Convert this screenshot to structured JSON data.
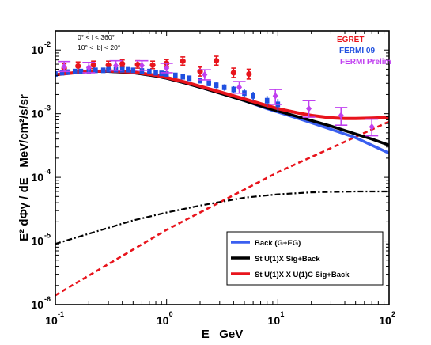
{
  "chart_data": {
    "type": "line",
    "xscale": "log",
    "yscale": "log",
    "xlim": [
      0.1,
      100
    ],
    "ylim": [
      1e-06,
      0.02
    ],
    "xlabel": "E   GeV",
    "ylabel": "E² dΦγ / dE   MeV/cm²/s/sr",
    "grid": false,
    "x_ticks": [
      {
        "value": 0.1,
        "base": "10",
        "exp": "-1"
      },
      {
        "value": 1,
        "base": "10",
        "exp": "0"
      },
      {
        "value": 10,
        "base": "10",
        "exp": "1"
      },
      {
        "value": 100,
        "base": "10",
        "exp": "2"
      }
    ],
    "y_ticks": [
      {
        "value": 1e-06,
        "base": "10",
        "exp": "-6"
      },
      {
        "value": 1e-05,
        "base": "10",
        "exp": "-5"
      },
      {
        "value": 0.0001,
        "base": "10",
        "exp": "-4"
      },
      {
        "value": 0.001,
        "base": "10",
        "exp": "-3"
      },
      {
        "value": 0.01,
        "base": "10",
        "exp": "-2"
      }
    ],
    "region_annotation": {
      "line1": "0° < l < 360°",
      "line2": "10° < |b| < 20°"
    },
    "data_legend": {
      "placement": "top-right",
      "entries": [
        {
          "label": "EGRET",
          "color": "#e8141c"
        },
        {
          "label": "FERMI 09",
          "color": "#2050e0"
        },
        {
          "label": "FERMI Prelim",
          "color": "#c040f0"
        }
      ]
    },
    "model_legend": {
      "placement": "bottom-right",
      "entries": [
        {
          "label": "Back (G+EG)",
          "color": "#3a5ff0"
        },
        {
          "label": "St U(1)X Sig+Back",
          "color": "#000000"
        },
        {
          "label": "St U(1)X X U(1)C Sig+Back",
          "color": "#e8141c"
        }
      ]
    },
    "series": [
      {
        "name": "Back (G+EG)",
        "kind": "line",
        "style": "solid",
        "color": "#3a5ff0",
        "x": [
          0.1,
          0.15,
          0.2,
          0.3,
          0.5,
          0.8,
          1,
          1.5,
          2,
          3,
          5,
          8,
          10,
          15,
          20,
          30,
          50,
          70,
          100
        ],
        "y": [
          0.0041,
          0.0044,
          0.0046,
          0.0046,
          0.0044,
          0.0039,
          0.0036,
          0.003,
          0.0026,
          0.0021,
          0.0016,
          0.0012,
          0.00106,
          0.00085,
          0.00072,
          0.00057,
          0.00042,
          0.00032,
          0.00024
        ]
      },
      {
        "name": "St U(1)X Sig+Back",
        "kind": "line",
        "style": "solid",
        "color": "#000000",
        "x": [
          0.1,
          0.15,
          0.2,
          0.3,
          0.5,
          0.8,
          1,
          1.5,
          2,
          3,
          5,
          8,
          10,
          15,
          20,
          30,
          50,
          70,
          100
        ],
        "y": [
          0.0041,
          0.0044,
          0.0046,
          0.0046,
          0.0044,
          0.0039,
          0.0036,
          0.003,
          0.0026,
          0.0021,
          0.0016,
          0.00123,
          0.0011,
          0.0009,
          0.00078,
          0.00064,
          0.00048,
          0.0004,
          0.00032
        ]
      },
      {
        "name": "St U(1)X X U(1)C Sig+Back",
        "kind": "line",
        "style": "solid",
        "color": "#e8141c",
        "x": [
          0.1,
          0.15,
          0.2,
          0.3,
          0.5,
          0.8,
          1,
          1.5,
          2,
          3,
          5,
          8,
          10,
          15,
          20,
          30,
          40,
          50,
          70,
          100
        ],
        "y": [
          0.0041,
          0.0044,
          0.0046,
          0.0047,
          0.0045,
          0.004,
          0.0037,
          0.0031,
          0.0027,
          0.0022,
          0.0017,
          0.00134,
          0.0012,
          0.00103,
          0.00094,
          0.00086,
          0.00084,
          0.00084,
          0.00085,
          0.00087
        ]
      },
      {
        "kind": "line",
        "style": "dashed",
        "color": "#e8141c",
        "x": [
          0.1,
          1,
          10,
          100
        ],
        "y": [
          1.4e-06,
          1.5e-05,
          0.00012,
          0.00075
        ]
      },
      {
        "kind": "line",
        "style": "dashdot",
        "color": "#000000",
        "x": [
          0.1,
          0.2,
          0.5,
          1,
          2,
          3,
          5,
          10,
          20,
          50,
          100
        ],
        "y": [
          9e-06,
          1.3e-05,
          2.1e-05,
          2.8e-05,
          3.6e-05,
          4.1e-05,
          4.8e-05,
          5.4e-05,
          5.8e-05,
          6e-05,
          6e-05
        ]
      },
      {
        "name": "EGRET",
        "kind": "points",
        "marker": "circle",
        "color": "#e8141c",
        "x": [
          0.12,
          0.16,
          0.22,
          0.3,
          0.4,
          0.55,
          0.75,
          1.0,
          1.4,
          2.0,
          2.8,
          4.0,
          5.5
        ],
        "y": [
          0.0052,
          0.0056,
          0.0058,
          0.0058,
          0.0061,
          0.0059,
          0.0058,
          0.0062,
          0.0067,
          0.0046,
          0.0068,
          0.0044,
          0.0042
        ],
        "yerr_low": [
          0.0044,
          0.0048,
          0.0051,
          0.0051,
          0.0054,
          0.0052,
          0.0051,
          0.0054,
          0.0058,
          0.0039,
          0.0058,
          0.0037,
          0.0035
        ],
        "yerr_high": [
          0.0061,
          0.0065,
          0.0067,
          0.0067,
          0.007,
          0.0068,
          0.0067,
          0.0071,
          0.0078,
          0.0054,
          0.008,
          0.0052,
          0.005
        ]
      },
      {
        "name": "FERMI 09",
        "kind": "points",
        "marker": "rect",
        "color": "#2050e0",
        "x": [
          0.1,
          0.115,
          0.13,
          0.15,
          0.17,
          0.2,
          0.23,
          0.27,
          0.3,
          0.35,
          0.4,
          0.45,
          0.5,
          0.6,
          0.7,
          0.8,
          0.9,
          1.0,
          1.2,
          1.4,
          1.6,
          2.0,
          2.4,
          2.8,
          3.3,
          4.0,
          5.0,
          6.0,
          8.0,
          10.0
        ],
        "y": [
          0.0042,
          0.0044,
          0.0045,
          0.0046,
          0.0046,
          0.0047,
          0.0048,
          0.0048,
          0.0049,
          0.0049,
          0.0049,
          0.0049,
          0.0048,
          0.0047,
          0.0046,
          0.0044,
          0.0043,
          0.0042,
          0.004,
          0.0038,
          0.0036,
          0.0033,
          0.003,
          0.0028,
          0.0026,
          0.0024,
          0.0021,
          0.0019,
          0.0016,
          0.0014
        ],
        "yerr_low": [
          0.0039,
          0.0041,
          0.0042,
          0.0043,
          0.0043,
          0.0044,
          0.0045,
          0.0045,
          0.0046,
          0.0046,
          0.0046,
          0.0046,
          0.0045,
          0.0044,
          0.0043,
          0.0041,
          0.004,
          0.0039,
          0.0037,
          0.0035,
          0.0033,
          0.003,
          0.0027,
          0.0025,
          0.0023,
          0.0021,
          0.0018,
          0.0016,
          0.0013,
          0.0011
        ],
        "yerr_high": [
          0.0045,
          0.0047,
          0.0048,
          0.0049,
          0.0049,
          0.005,
          0.0051,
          0.0051,
          0.0052,
          0.0052,
          0.0052,
          0.0052,
          0.0051,
          0.005,
          0.0049,
          0.0047,
          0.0046,
          0.0045,
          0.0043,
          0.0041,
          0.0039,
          0.0036,
          0.0033,
          0.0031,
          0.0029,
          0.0027,
          0.0024,
          0.0022,
          0.0019,
          0.0017
        ]
      },
      {
        "name": "FERMI Prelim",
        "kind": "points",
        "marker": "diamond",
        "color": "#c040f0",
        "x": [
          0.12,
          0.2,
          0.35,
          0.6,
          1.0,
          2.2,
          4.5,
          9.5,
          19,
          37,
          70
        ],
        "y": [
          0.0055,
          0.0053,
          0.0057,
          0.0057,
          0.0052,
          0.0041,
          0.0026,
          0.0019,
          0.0012,
          0.00094,
          0.00062
        ],
        "yerr_low": [
          0.0046,
          0.0044,
          0.0048,
          0.0048,
          0.0044,
          0.0034,
          0.0021,
          0.0014,
          0.00088,
          0.00066,
          0.00045
        ],
        "yerr_high": [
          0.0066,
          0.0064,
          0.0068,
          0.0068,
          0.0062,
          0.0049,
          0.0032,
          0.0024,
          0.0016,
          0.00125,
          0.00082
        ]
      }
    ]
  }
}
